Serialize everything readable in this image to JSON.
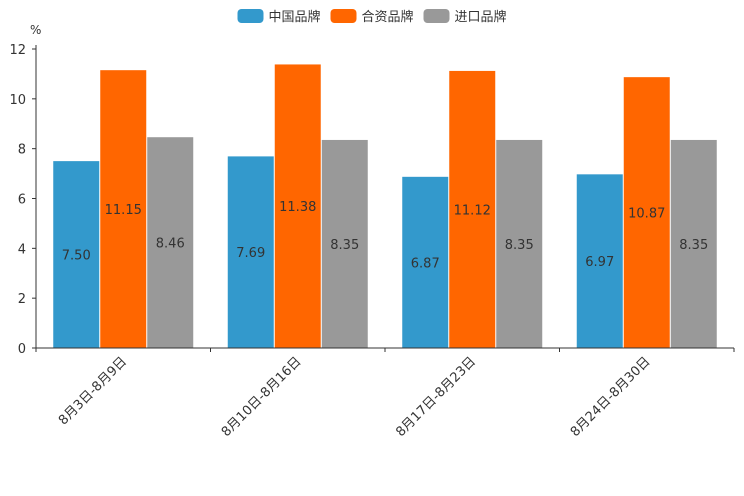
{
  "chart_data": {
    "type": "bar",
    "unit": "%",
    "categories": [
      "8月3日-8月9日",
      "8月10日-8月16日",
      "8月17日-8月23日",
      "8月24日-8月30日"
    ],
    "series": [
      {
        "name": "中国品牌",
        "color": "#3399cc",
        "values": [
          7.5,
          7.69,
          6.87,
          6.97
        ],
        "labels": [
          "7.50",
          "7.69",
          "6.87",
          "6.97"
        ]
      },
      {
        "name": "合资品牌",
        "color": "#ff6600",
        "values": [
          11.15,
          11.38,
          11.12,
          10.87
        ],
        "labels": [
          "11.15",
          "11.38",
          "11.12",
          "10.87"
        ]
      },
      {
        "name": "进口品牌",
        "color": "#999999",
        "values": [
          8.46,
          8.35,
          8.35,
          8.35
        ],
        "labels": [
          "8.46",
          "8.35",
          "8.35",
          "8.35"
        ]
      }
    ],
    "yticks": [
      "0",
      "2",
      "4",
      "6",
      "8",
      "10",
      "12"
    ],
    "ylim": [
      0,
      12
    ],
    "legend": "top-center",
    "grid": false
  }
}
